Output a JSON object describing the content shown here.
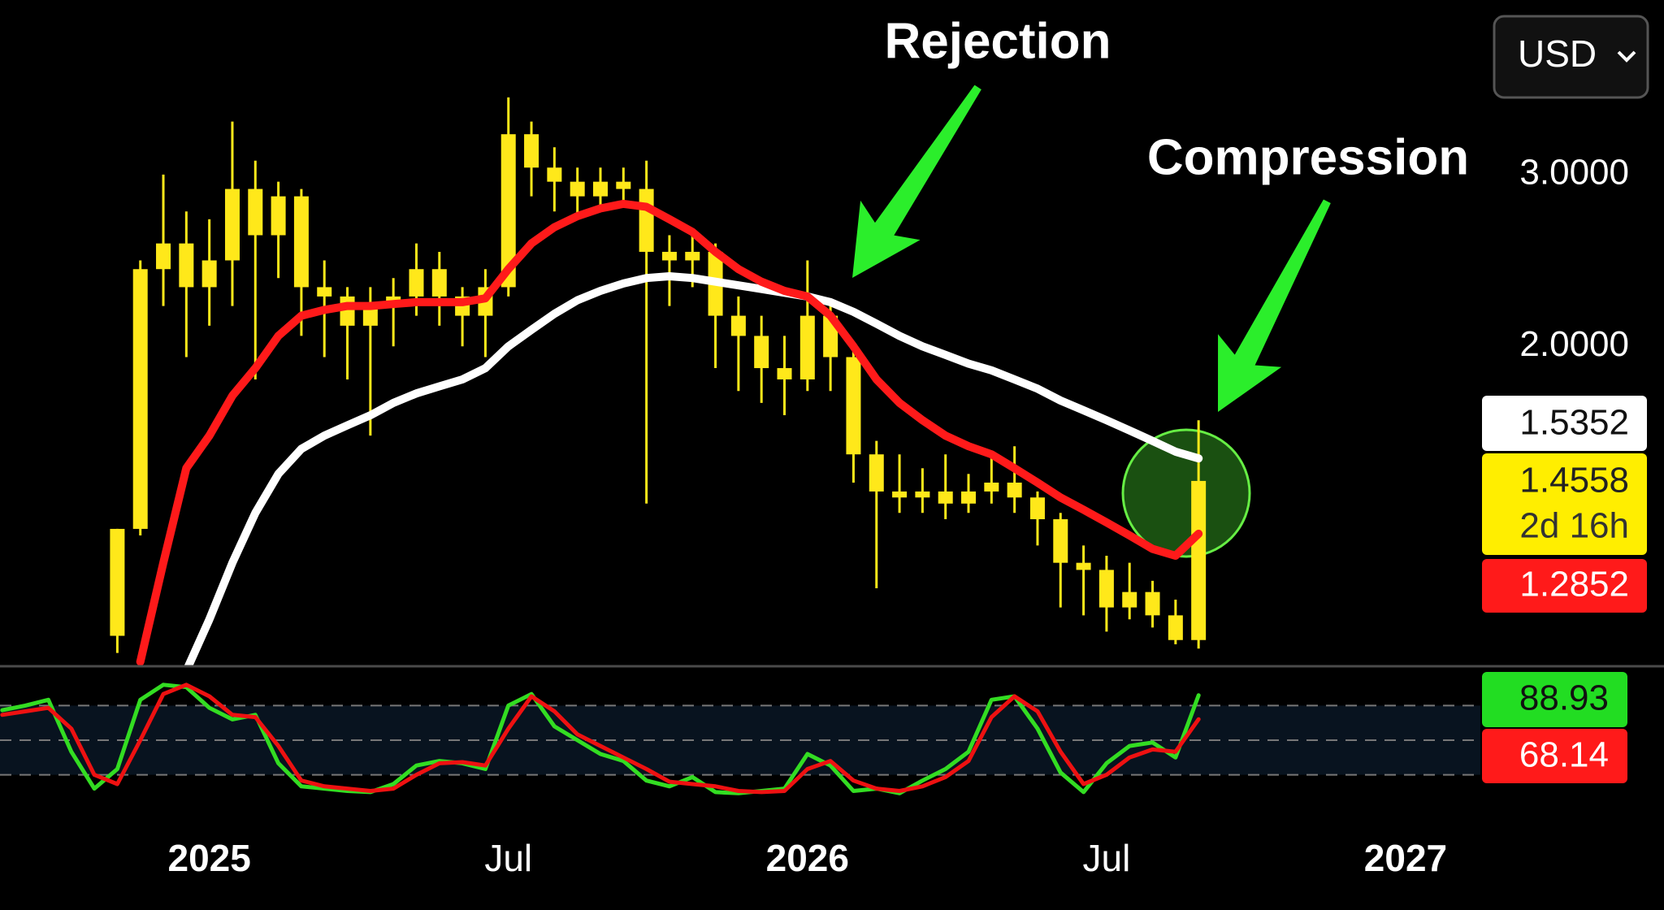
{
  "chart_data": [
    {
      "type": "candlestick",
      "log_scale": true,
      "color": "#ffe81a",
      "annotations": [
        "Rejection",
        "Compression"
      ],
      "currency": "USD",
      "countdown": "2d 16h",
      "xlim": [
        -18.2,
        110.5
      ],
      "xticks": [
        {
          "value": 0,
          "label": "2025"
        },
        {
          "value": 26,
          "label": "Jul"
        },
        {
          "value": 52,
          "label": "2026"
        },
        {
          "value": 78,
          "label": "Jul"
        },
        {
          "value": 104,
          "label": "2027"
        }
      ],
      "ylim": [
        0.94,
        4.53
      ],
      "yticks": [
        {
          "value": 3,
          "label": "3.0000"
        },
        {
          "value": 2,
          "label": "2.0000"
        }
      ],
      "x": [
        -8,
        -6,
        -4,
        -2,
        0,
        2,
        4,
        6,
        8,
        10,
        12,
        14,
        16,
        18,
        20,
        22,
        24,
        26,
        28,
        30,
        32,
        34,
        36,
        38,
        40,
        42,
        44,
        46,
        48,
        50,
        52,
        54,
        56,
        58,
        60,
        62,
        64,
        66,
        68,
        70,
        72,
        74,
        76,
        78,
        80,
        82,
        84,
        86
      ],
      "open": [
        1.01,
        1.3,
        2.4,
        2.55,
        2.3,
        2.45,
        2.9,
        2.6,
        2.85,
        2.3,
        2.25,
        2.1,
        2.2,
        2.25,
        2.4,
        2.25,
        2.15,
        2.3,
        3.3,
        3.05,
        2.95,
        2.85,
        2.95,
        2.9,
        2.5,
        2.45,
        2.5,
        2.15,
        2.05,
        1.9,
        1.85,
        2.15,
        1.95,
        1.55,
        1.42,
        1.4,
        1.42,
        1.38,
        1.42,
        1.45,
        1.4,
        1.33,
        1.2,
        1.18,
        1.08,
        1.12,
        1.06,
        1.0
      ],
      "high": [
        1.3,
        2.45,
        3.0,
        2.75,
        2.7,
        3.4,
        3.1,
        2.95,
        2.9,
        2.45,
        2.3,
        2.3,
        2.35,
        2.55,
        2.5,
        2.3,
        2.4,
        3.6,
        3.4,
        3.2,
        3.05,
        3.05,
        3.05,
        3.1,
        2.6,
        2.6,
        2.55,
        2.25,
        2.15,
        2.05,
        2.45,
        2.2,
        2.0,
        1.6,
        1.55,
        1.5,
        1.55,
        1.48,
        1.55,
        1.58,
        1.42,
        1.35,
        1.25,
        1.22,
        1.2,
        1.15,
        1.1,
        1.68
      ],
      "low": [
        0.97,
        1.28,
        2.2,
        1.95,
        2.1,
        2.2,
        1.85,
        2.35,
        2.05,
        1.95,
        1.85,
        1.62,
        2.0,
        2.15,
        2.1,
        2.0,
        1.95,
        2.25,
        2.85,
        2.75,
        2.7,
        2.75,
        2.8,
        1.38,
        2.2,
        2.3,
        1.9,
        1.8,
        1.75,
        1.7,
        1.8,
        1.8,
        1.45,
        1.13,
        1.35,
        1.35,
        1.33,
        1.35,
        1.38,
        1.35,
        1.25,
        1.08,
        1.06,
        1.02,
        1.05,
        1.03,
        0.99,
        0.98
      ],
      "close": [
        1.3,
        2.4,
        2.55,
        2.3,
        2.45,
        2.9,
        2.6,
        2.85,
        2.3,
        2.25,
        2.1,
        2.2,
        2.25,
        2.4,
        2.25,
        2.15,
        2.3,
        3.3,
        3.05,
        2.95,
        2.85,
        2.95,
        2.9,
        2.5,
        2.45,
        2.5,
        2.15,
        2.05,
        1.9,
        1.85,
        2.15,
        1.95,
        1.55,
        1.42,
        1.4,
        1.42,
        1.38,
        1.42,
        1.45,
        1.4,
        1.33,
        1.2,
        1.18,
        1.08,
        1.12,
        1.06,
        1.0,
        1.4558
      ],
      "series": [
        {
          "color": "#ffffff",
          "values": [
            null,
            null,
            null,
            0.93,
            1.05,
            1.2,
            1.35,
            1.48,
            1.57,
            1.62,
            1.66,
            1.7,
            1.75,
            1.79,
            1.82,
            1.85,
            1.9,
            2.0,
            2.08,
            2.16,
            2.23,
            2.28,
            2.32,
            2.35,
            2.36,
            2.35,
            2.33,
            2.31,
            2.29,
            2.27,
            2.25,
            2.22,
            2.17,
            2.11,
            2.05,
            2.0,
            1.96,
            1.92,
            1.89,
            1.85,
            1.81,
            1.76,
            1.72,
            1.68,
            1.64,
            1.6,
            1.56,
            1.5352
          ]
        },
        {
          "color": "#ff1a1a",
          "values": [
            null,
            0.95,
            1.2,
            1.5,
            1.62,
            1.78,
            1.9,
            2.05,
            2.15,
            2.18,
            2.2,
            2.2,
            2.21,
            2.22,
            2.22,
            2.22,
            2.24,
            2.4,
            2.55,
            2.65,
            2.72,
            2.77,
            2.8,
            2.78,
            2.7,
            2.62,
            2.5,
            2.4,
            2.33,
            2.28,
            2.25,
            2.15,
            2.0,
            1.85,
            1.75,
            1.68,
            1.62,
            1.58,
            1.55,
            1.5,
            1.45,
            1.4,
            1.36,
            1.32,
            1.28,
            1.24,
            1.22,
            1.2852
          ]
        }
      ]
    },
    {
      "type": "line",
      "ylim": [
        0,
        100
      ],
      "levels": [
        20,
        50,
        80
      ],
      "x": [
        -18,
        -16,
        -14,
        -12,
        -10,
        -8,
        -6,
        -4,
        -2,
        0,
        2,
        4,
        6,
        8,
        10,
        12,
        14,
        16,
        18,
        20,
        22,
        24,
        26,
        28,
        30,
        32,
        34,
        36,
        38,
        40,
        42,
        44,
        46,
        48,
        50,
        52,
        54,
        56,
        58,
        60,
        62,
        64,
        66,
        68,
        70,
        72,
        74,
        76,
        78,
        80,
        82,
        84,
        86
      ],
      "series": [
        {
          "color": "#33dd22",
          "values": [
            76,
            80,
            85,
            40,
            8,
            25,
            85,
            98,
            96,
            78,
            68,
            72,
            30,
            10,
            8,
            6,
            5,
            12,
            28,
            32,
            30,
            25,
            80,
            90,
            62,
            50,
            38,
            32,
            15,
            10,
            18,
            5,
            4,
            6,
            8,
            38,
            28,
            6,
            8,
            4,
            15,
            25,
            40,
            85,
            88,
            60,
            22,
            5,
            30,
            45,
            48,
            35,
            88.93
          ]
        },
        {
          "color": "#ee1111",
          "values": [
            72,
            75,
            78,
            60,
            20,
            12,
            50,
            90,
            98,
            88,
            72,
            70,
            45,
            15,
            10,
            8,
            6,
            8,
            20,
            30,
            31,
            28,
            60,
            88,
            75,
            55,
            45,
            35,
            25,
            14,
            12,
            10,
            6,
            5,
            6,
            25,
            32,
            15,
            8,
            6,
            10,
            18,
            32,
            70,
            88,
            75,
            40,
            12,
            20,
            35,
            42,
            40,
            68.14
          ]
        }
      ]
    }
  ]
}
